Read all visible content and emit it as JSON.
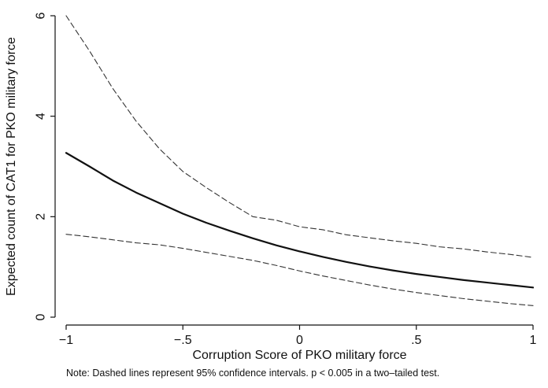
{
  "chart_data": {
    "type": "line",
    "title": "",
    "xlabel": "Corruption Score of PKO military force",
    "ylabel": "Expected count of CAT1 for PKO military force",
    "note": "Note: Dashed lines represent 95% confidence intervals. p < 0.005 in a two–tailed test.",
    "xlim": [
      -1,
      1
    ],
    "ylim": [
      0,
      6
    ],
    "x_ticks": [
      -1,
      -0.5,
      0,
      0.5,
      1
    ],
    "x_tick_labels": [
      "−1",
      "−.5",
      "0",
      ".5",
      "1"
    ],
    "y_ticks": [
      0,
      2,
      4,
      6
    ],
    "y_tick_labels": [
      "0",
      "2",
      "4",
      "6"
    ],
    "grid": false,
    "x": [
      -1.0,
      -0.9,
      -0.8,
      -0.7,
      -0.6,
      -0.5,
      -0.4,
      -0.3,
      -0.2,
      -0.1,
      0.0,
      0.1,
      0.2,
      0.3,
      0.4,
      0.5,
      0.6,
      0.7,
      0.8,
      0.9,
      1.0
    ],
    "series": [
      {
        "name": "Expected count",
        "style": "solid",
        "color": "#111111",
        "values": [
          3.27,
          3.0,
          2.72,
          2.48,
          2.27,
          2.06,
          1.88,
          1.72,
          1.57,
          1.43,
          1.31,
          1.2,
          1.1,
          1.01,
          0.93,
          0.86,
          0.8,
          0.74,
          0.69,
          0.64,
          0.59
        ]
      },
      {
        "name": "Upper 95% CI",
        "style": "dashed",
        "color": "#333333",
        "values": [
          6.0,
          5.3,
          4.55,
          3.9,
          3.35,
          2.9,
          2.58,
          2.28,
          2.0,
          1.93,
          1.8,
          1.74,
          1.64,
          1.58,
          1.52,
          1.47,
          1.4,
          1.36,
          1.3,
          1.25,
          1.19
        ]
      },
      {
        "name": "Lower 95% CI",
        "style": "dashed",
        "color": "#333333",
        "values": [
          1.65,
          1.6,
          1.54,
          1.48,
          1.44,
          1.37,
          1.29,
          1.21,
          1.13,
          1.03,
          0.92,
          0.82,
          0.73,
          0.64,
          0.56,
          0.49,
          0.43,
          0.37,
          0.32,
          0.27,
          0.23
        ]
      }
    ]
  }
}
